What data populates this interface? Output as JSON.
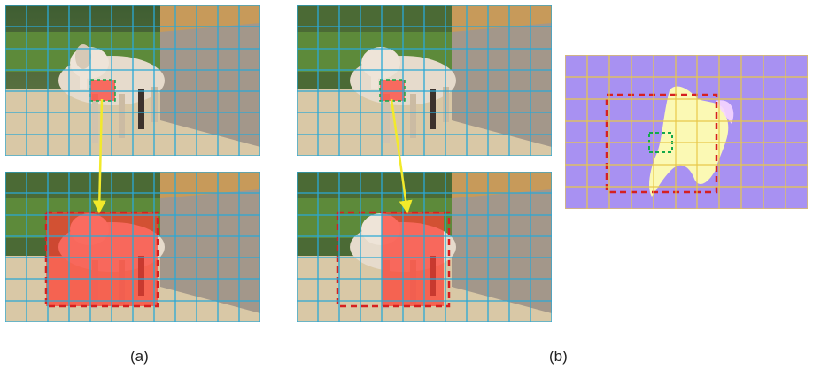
{
  "figure": {
    "captions": {
      "a": "(a)",
      "b": "(b)"
    }
  },
  "colors": {
    "grid": "#2aa9d6",
    "heatmap_grid": "#e8c84a",
    "highlight_red": "#ff3b30",
    "box_red": "#d62020",
    "box_green": "#12a84a",
    "arrow_yellow": "#f2ea2a",
    "heatmap_bg": "#a891f2",
    "heatmap_hot": "#ffffb0"
  },
  "panels": [
    {
      "name": "a-top-query-image",
      "icon": "camel-photo"
    },
    {
      "name": "a-bottom-key-image-full-attention",
      "icon": "camel-photo"
    },
    {
      "name": "b-top-query-image",
      "icon": "camel-photo"
    },
    {
      "name": "b-bottom-key-image-local-window",
      "icon": "camel-photo"
    },
    {
      "name": "b-attention-heatmap",
      "icon": "heatmap"
    }
  ]
}
